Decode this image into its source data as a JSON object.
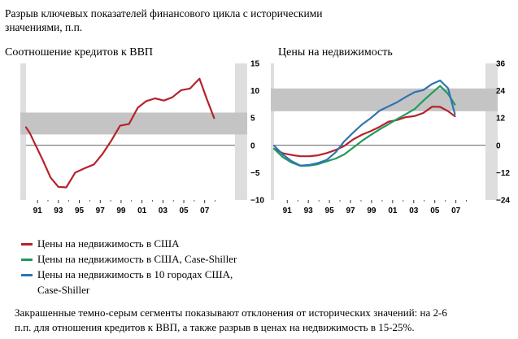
{
  "title_line1": "Разрыв ключевых показателей финансового цикла с историческими",
  "title_line2": "значениями, п.п.",
  "colors": {
    "band": "#c4c4c4",
    "frame": "#dedede",
    "red": "#b5232b",
    "green": "#1f9b5b",
    "blue": "#2f73b4"
  },
  "legend": {
    "us": "Цены на недвижимость в США",
    "cs": "Цены  на недвижимость в США, Case-Shiller",
    "cs10_line1": "Цены на недвижимость в 10 городах США,",
    "cs10_line2": "Case-Shiller"
  },
  "footnote": {
    "line1": "Закрашенные темно-серым сегменты показывают отклонения от исторических значений: на 2-6",
    "line2": "п.п. для отношения кредитов к ВВП, а также разрыв в ценах на недвижимость в 15-25%."
  },
  "chart_data": [
    {
      "type": "line",
      "title": "Соотношение кредитов к ВВП",
      "x_tick_labels": [
        "91",
        "93",
        "95",
        "97",
        "99",
        "01",
        "03",
        "05",
        "07"
      ],
      "x_ticks": [
        1991,
        1993,
        1995,
        1997,
        1999,
        2001,
        2003,
        2005,
        2007
      ],
      "y_tick_labels": [
        "15",
        "10",
        "5",
        "0",
        "−5",
        "−10"
      ],
      "y_ticks": [
        15,
        10,
        5,
        0,
        -5,
        -10
      ],
      "ylim": [
        -10,
        15
      ],
      "xlim": [
        1989.9,
        2009.9
      ],
      "band": [
        2,
        6
      ],
      "grid": false,
      "y_axis_side": "right",
      "series": [
        {
          "color": "red",
          "x": [
            1989.9,
            1990.25,
            1990.75,
            1991.5,
            1992.25,
            1993.0,
            1993.75,
            1994.6,
            1995.5,
            1996.4,
            1997.25,
            1998.1,
            1998.9,
            1999.75,
            2000.6,
            2001.4,
            2002.25,
            2003.1,
            2003.9,
            2004.75,
            2005.6,
            2006.5,
            2007.2,
            2007.9
          ],
          "y": [
            3.3,
            2.3,
            0.3,
            -2.7,
            -5.9,
            -7.6,
            -7.7,
            -5.0,
            -4.2,
            -3.5,
            -1.5,
            1.0,
            3.6,
            3.9,
            6.9,
            8.1,
            8.6,
            8.2,
            8.8,
            10.1,
            10.4,
            12.2,
            8.5,
            5.0
          ]
        }
      ]
    },
    {
      "type": "line",
      "title": "Цены на недвижимость",
      "x_tick_labels": [
        "91",
        "93",
        "95",
        "97",
        "99",
        "01",
        "03",
        "05",
        "07"
      ],
      "x_ticks": [
        1991,
        1993,
        1995,
        1997,
        1999,
        2001,
        2003,
        2005,
        2007
      ],
      "y_tick_labels": [
        "36",
        "24",
        "12",
        "0",
        "−12",
        "−24"
      ],
      "y_ticks": [
        36,
        24,
        12,
        0,
        -12,
        -24
      ],
      "ylim": [
        -24,
        36
      ],
      "xlim": [
        1989.75,
        2009.8
      ],
      "band": [
        15,
        25
      ],
      "grid": false,
      "y_axis_side": "right",
      "series": [
        {
          "color": "red",
          "x": [
            1989.75,
            1990.6,
            1991.4,
            1992.25,
            1993.1,
            1993.9,
            1994.75,
            1995.6,
            1996.4,
            1997.25,
            1998.1,
            1998.9,
            1999.75,
            2000.6,
            2001.4,
            2002.25,
            2003.1,
            2003.9,
            2004.75,
            2005.5,
            2006.25,
            2006.9
          ],
          "y": [
            -1.5,
            -3.5,
            -4.2,
            -4.8,
            -4.8,
            -4.4,
            -3.4,
            -2.0,
            -0.3,
            2.6,
            4.7,
            6.2,
            8.1,
            10.4,
            11.1,
            12.4,
            12.9,
            14.2,
            17.0,
            16.9,
            15.0,
            12.8
          ]
        },
        {
          "color": "green",
          "x": [
            1989.75,
            1990.6,
            1991.4,
            1992.25,
            1993.1,
            1993.9,
            1994.75,
            1995.6,
            1996.4,
            1997.25,
            1998.1,
            1998.9,
            1999.75,
            2000.6,
            2001.4,
            2002.25,
            2003.1,
            2003.9,
            2004.75,
            2005.5,
            2006.25,
            2006.9
          ],
          "y": [
            -1.5,
            -5.2,
            -7.5,
            -9.0,
            -8.9,
            -8.3,
            -7.0,
            -5.8,
            -4.0,
            -1.0,
            2.0,
            4.5,
            7.0,
            9.3,
            11.5,
            13.7,
            16.0,
            19.6,
            23.1,
            26.1,
            22.6,
            17.9
          ]
        },
        {
          "color": "blue",
          "x": [
            1989.75,
            1990.6,
            1991.4,
            1992.25,
            1993.1,
            1993.9,
            1994.75,
            1995.6,
            1996.4,
            1997.25,
            1998.1,
            1998.9,
            1999.75,
            2000.6,
            2001.4,
            2002.25,
            2003.1,
            2003.9,
            2004.75,
            2005.5,
            2006.25,
            2006.9
          ],
          "y": [
            -0.1,
            -4.1,
            -6.9,
            -8.9,
            -8.6,
            -7.8,
            -6.4,
            -3.0,
            1.7,
            5.6,
            9.2,
            11.9,
            15.2,
            17.1,
            18.9,
            21.3,
            23.4,
            24.3,
            27.0,
            28.5,
            25.1,
            13.7
          ]
        }
      ]
    }
  ]
}
